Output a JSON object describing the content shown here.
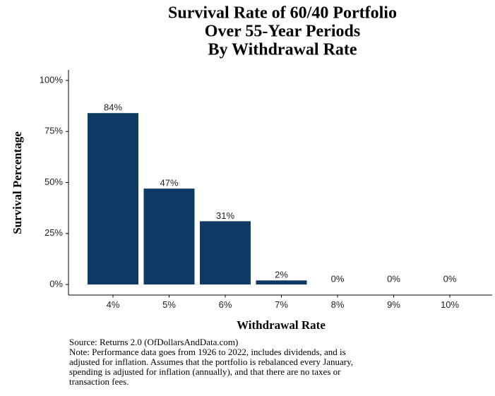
{
  "chart_data": {
    "type": "bar",
    "title": [
      "Survival Rate of 60/40 Portfolio",
      "Over 55-Year Periods",
      "By Withdrawal Rate"
    ],
    "x_label": "Withdrawal Rate",
    "y_label": "Survival Percentage",
    "categories": [
      "4%",
      "5%",
      "6%",
      "7%",
      "8%",
      "9%",
      "10%"
    ],
    "values": [
      84,
      47,
      31,
      2,
      0,
      0,
      0
    ],
    "value_labels": [
      "84%",
      "47%",
      "31%",
      "2%",
      "0%",
      "0%",
      "0%"
    ],
    "color": "#0d3b66",
    "label_color": "#2d5b85",
    "ylim": [
      -5,
      105
    ],
    "yticks": [
      {
        "value": 0,
        "label": "0%"
      },
      {
        "value": 25,
        "label": "25%"
      },
      {
        "value": 50,
        "label": "50%"
      },
      {
        "value": 75,
        "label": "75%"
      },
      {
        "value": 100,
        "label": "100%"
      }
    ],
    "grid": false,
    "source": "Source:  Returns 2.0 (OfDollarsAndData.com)",
    "note": [
      "Note: Performance data goes from 1926 to 2022, includes dividends, and is",
      "adjusted for inflation. Assumes that the portfolio is rebalanced every January,",
      "spending is adjusted for inflation (annually), and that there are no taxes or",
      "transaction fees."
    ]
  }
}
